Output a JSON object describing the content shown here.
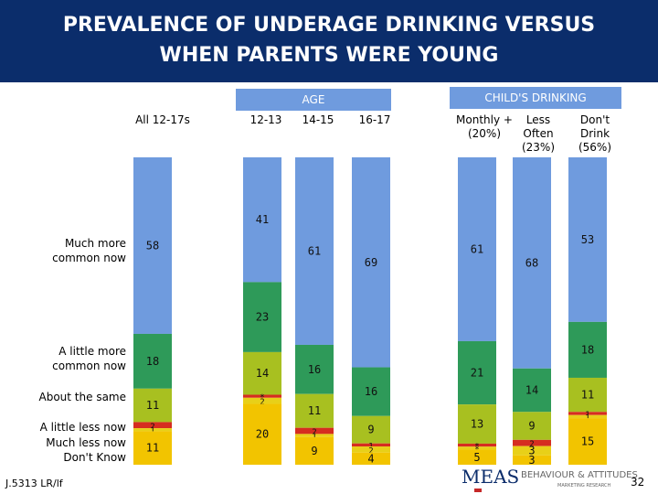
{
  "title": {
    "line1": "PREVALENCE OF UNDERAGE DRINKING VERSUS",
    "line2": "WHEN PARENTS WERE YOUNG"
  },
  "headers": {
    "age": "AGE",
    "childs_drinking": "CHILD'S DRINKING"
  },
  "columns": [
    {
      "line1": "All 12-17s",
      "line2": "",
      "line3": ""
    },
    {
      "line1": "12-13",
      "line2": "",
      "line3": ""
    },
    {
      "line1": "14-15",
      "line2": "",
      "line3": ""
    },
    {
      "line1": "16-17",
      "line2": "",
      "line3": ""
    },
    {
      "line1": "Monthly +",
      "line2": "(20%)",
      "line3": ""
    },
    {
      "line1": "Less",
      "line2": "Often",
      "line3": "(23%)"
    },
    {
      "line1": "Don't",
      "line2": "Drink",
      "line3": "(56%)"
    }
  ],
  "row_labels": {
    "much_more": [
      "Much more",
      "common now"
    ],
    "little_more": [
      "A little more",
      "common now"
    ],
    "about_same": "About the same",
    "little_less": "A little less now",
    "much_less": "Much less now",
    "dont_know": "Don't Know"
  },
  "chart_data": {
    "type": "bar",
    "stacked": true,
    "orientation": "vertical",
    "categories": [
      "All 12-17s",
      "12-13",
      "14-15",
      "16-17",
      "Monthly + (20%)",
      "Less Often (23%)",
      "Don't Drink (56%)"
    ],
    "series": [
      {
        "name": "Much more common now",
        "values": [
          58,
          41,
          61,
          69,
          61,
          68,
          53
        ],
        "labels": [
          "58",
          "41",
          "61",
          "69",
          "61",
          "68",
          "53"
        ],
        "color": "#6f9bde"
      },
      {
        "name": "A little more common now",
        "values": [
          18,
          23,
          16,
          16,
          21,
          14,
          18
        ],
        "labels": [
          "18",
          "23",
          "16",
          "16",
          "21",
          "14",
          "18"
        ],
        "color": "#2e9a59"
      },
      {
        "name": "About the same",
        "values": [
          11,
          14,
          11,
          9,
          13,
          9,
          11
        ],
        "labels": [
          "11",
          "14",
          "11",
          "9",
          "13",
          "9",
          "11"
        ],
        "color": "#a8c020"
      },
      {
        "name": "A little less now",
        "values": [
          2,
          1,
          2,
          1,
          1,
          2,
          1
        ],
        "labels": [
          "2",
          "*",
          "2",
          "1",
          "*",
          "2",
          "1"
        ],
        "color": "#d62d20"
      },
      {
        "name": "Much less now",
        "values": [
          1,
          2,
          1,
          2,
          1,
          3,
          1
        ],
        "labels": [
          "1",
          "2",
          "1",
          "2",
          "*",
          "3",
          "1"
        ],
        "color": "#e8d018"
      },
      {
        "name": "Don't Know",
        "values": [
          11,
          20,
          9,
          4,
          5,
          3,
          15
        ],
        "labels": [
          "11",
          "20",
          "9",
          "4",
          "5",
          "3",
          "15"
        ],
        "color": "#f2c400"
      }
    ],
    "ylim": [
      0,
      100
    ],
    "grid": false,
    "legend": "none"
  },
  "footer": {
    "code": "J.5313 LR/lf",
    "page": "32",
    "logo_text": "MEAS",
    "logo_text2": "BEHAVIOUR & ATTITUDES",
    "logo_sub": "MARKETING RESEARCH"
  }
}
